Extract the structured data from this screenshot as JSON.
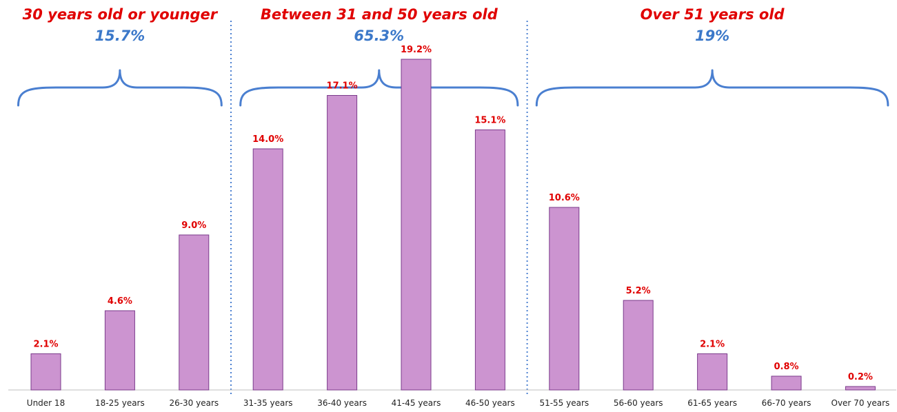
{
  "chart_data": {
    "type": "bar",
    "categories": [
      "Under 18",
      "18-25 years",
      "26-30 years",
      "31-35 years",
      "36-40 years",
      "41-45 years",
      "46-50 years",
      "51-55 years",
      "56-60 years",
      "61-65 years",
      "66-70 years",
      "Over 70 years"
    ],
    "values": [
      2.1,
      4.6,
      9.0,
      14.0,
      17.1,
      19.2,
      15.1,
      10.6,
      5.2,
      2.1,
      0.8,
      0.2
    ],
    "data_labels": [
      "2.1%",
      "4.6%",
      "9.0%",
      "14.0%",
      "17.1%",
      "19.2%",
      "15.1%",
      "10.6%",
      "5.2%",
      "2.1%",
      "0.8%",
      "0.2%"
    ],
    "ylim": [
      0,
      20
    ],
    "grid": false,
    "groups": [
      {
        "title": "30 years old or younger",
        "share": "15.7%",
        "first": 0,
        "last": 2
      },
      {
        "title": "Between 31 and 50 years old",
        "share": "65.3%",
        "first": 3,
        "last": 6
      },
      {
        "title": "Over 51 years old",
        "share": "19%",
        "first": 7,
        "last": 11
      }
    ],
    "colors": {
      "bar_fill": "#cc94d0",
      "bar_stroke": "#7a3a8a",
      "value_label": "#e00000",
      "group_title": "#e00000",
      "group_share": "#3b78c9",
      "brace": "#4a7fd0",
      "divider": "#4a7fd0"
    }
  }
}
